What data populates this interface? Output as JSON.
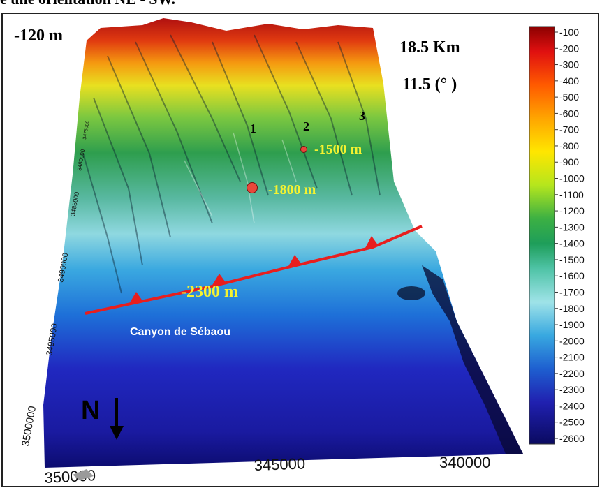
{
  "caption": "e une orientation NE - SW.",
  "labels": {
    "top_left_depth": "-120 m",
    "distance": "18.5 Km",
    "angle": "11.5 (° )",
    "canyon_numbers": [
      "1",
      "2",
      "3"
    ],
    "depth_point_1": "-1500 m",
    "depth_point_2": "-1800 m",
    "depth_line": "-2300 m",
    "canyon_name": "Canyon de Sébaou",
    "north": "N"
  },
  "axes": {
    "eastings": [
      "350000",
      "345000",
      "340000"
    ],
    "northings": [
      "3500000",
      "3495000",
      "3490000",
      "3485000",
      "3480000",
      "3475000"
    ]
  },
  "colorbar": {
    "ticks": [
      "-100",
      "-200",
      "-300",
      "-400",
      "-500",
      "-600",
      "-700",
      "-800",
      "-900",
      "-1000",
      "-1100",
      "-1200",
      "-1300",
      "-1400",
      "-1500",
      "-1600",
      "-1700",
      "-1800",
      "-1900",
      "-2000",
      "-2100",
      "-2200",
      "-2300",
      "-2400",
      "-2500",
      "-2600"
    ],
    "colors": [
      "#8b0000",
      "#e01010",
      "#ff5a00",
      "#ffa500",
      "#ffe600",
      "#b5e61d",
      "#3cb043",
      "#1e9e5a",
      "#4fc3a6",
      "#9fe3e8",
      "#38a8e0",
      "#1e5fd0",
      "#2020b0",
      "#0a0a60"
    ]
  },
  "markers": {
    "color": "#e8473a",
    "fault_color": "#e81e1e"
  }
}
